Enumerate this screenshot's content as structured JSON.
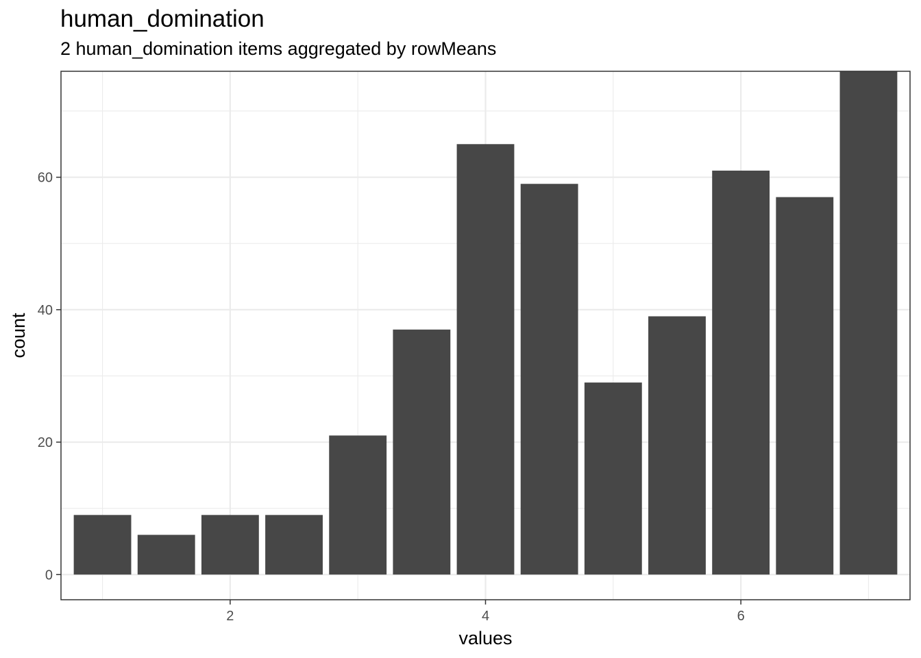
{
  "chart_data": {
    "type": "bar",
    "title": "human_domination",
    "subtitle": "2 human_domination items aggregated by rowMeans",
    "xlabel": "values",
    "ylabel": "count",
    "x": [
      1.0,
      1.5,
      2.0,
      2.5,
      3.0,
      3.5,
      4.0,
      4.5,
      5.0,
      5.5,
      6.0,
      6.5,
      7.0
    ],
    "values": [
      9,
      6,
      9,
      9,
      21,
      37,
      65,
      59,
      29,
      39,
      61,
      57,
      76
    ],
    "bar_width": 0.45,
    "xlim": [
      0.675,
      7.325
    ],
    "ylim": [
      -3.8,
      76
    ],
    "x_ticks": [
      2,
      4,
      6
    ],
    "y_ticks": [
      0,
      20,
      40,
      60
    ],
    "grid": true,
    "bar_color": "#474747",
    "grid_color": "#ebebeb",
    "border_color": "#333333"
  }
}
